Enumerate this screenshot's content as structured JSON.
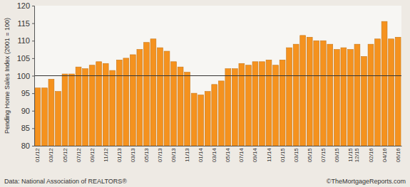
{
  "chart_data": {
    "type": "bar",
    "y_label": "Pending Home Sales Index (2001 = 100)",
    "source": "Data: National Association of REALTORS®",
    "credit": "©TheMortgageReports.com",
    "categories": [
      "01/12",
      null,
      "03/12",
      null,
      "05/12",
      null,
      "07/12",
      null,
      "09/12",
      null,
      "11/12",
      null,
      "01/13",
      null,
      "03/13",
      null,
      "05/13",
      null,
      "07/13",
      null,
      "09/13",
      null,
      "11/13",
      null,
      "01/14",
      null,
      "03/14",
      null,
      "05/14",
      null,
      "07/14",
      null,
      "09/14",
      null,
      "11/14",
      null,
      "01/15",
      null,
      "03/15",
      null,
      "05/15",
      null,
      "07/15",
      null,
      "09/15",
      null,
      "11/15",
      "12/15",
      null,
      "02/16",
      null,
      "04/16",
      null,
      "06/16"
    ],
    "values": [
      96.5,
      96.5,
      99,
      95.5,
      100.5,
      100.5,
      102.5,
      102,
      103,
      104,
      103.5,
      101.5,
      104.5,
      105,
      106,
      107.5,
      109.5,
      110.5,
      108,
      107,
      104,
      102.5,
      101,
      95,
      94.5,
      95.5,
      97.5,
      98.5,
      102,
      102,
      103.5,
      103,
      104,
      104,
      104.5,
      103,
      104.5,
      108,
      109,
      111.5,
      111,
      110,
      110,
      109,
      107.5,
      108,
      107.5,
      109,
      105.5,
      109,
      110.5,
      115.5,
      110.5,
      111
    ],
    "baseline": 100,
    "color": "#f5921e",
    "ylim": [
      80,
      120
    ],
    "yticks": [
      80,
      85,
      90,
      95,
      100,
      105,
      110,
      115,
      120
    ],
    "grid": false
  }
}
